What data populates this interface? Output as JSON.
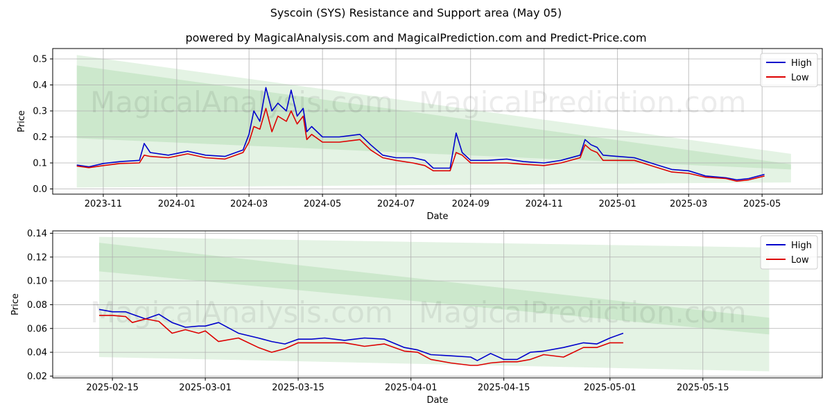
{
  "title": "Syscoin (SYS) Resistance and Support area (May 05)",
  "subtitle": "powered by MagicalAnalysis.com and MagicalPrediction.com and Predict-Price.com",
  "watermarks": [
    "MagicalAnalysis.com",
    "MagicalPrediction.com"
  ],
  "colors": {
    "high": "#0000cc",
    "low": "#dd0000",
    "band": "#2ca02c",
    "grid": "#b0b0b0"
  },
  "chart_data": [
    {
      "type": "line",
      "xlabel": "Date",
      "ylabel": "Price",
      "xlim": [
        "2023-09-20",
        "2025-06-20"
      ],
      "ylim": [
        -0.02,
        0.54
      ],
      "x_ticks": [
        "2023-11",
        "2024-01",
        "2024-03",
        "2024-05",
        "2024-07",
        "2024-09",
        "2024-11",
        "2025-01",
        "2025-03",
        "2025-05"
      ],
      "y_ticks": [
        0.0,
        0.1,
        0.2,
        0.3,
        0.4,
        0.5
      ],
      "grid": true,
      "legend_position": "top-right",
      "bands": [
        {
          "x": [
            "2023-10-10",
            "2025-05-25"
          ],
          "upper": [
            0.515,
            0.135
          ],
          "lower": [
            0.005,
            0.025
          ]
        },
        {
          "x": [
            "2023-10-10",
            "2025-05-25"
          ],
          "upper": [
            0.475,
            0.095
          ],
          "lower": [
            0.195,
            0.075
          ]
        }
      ],
      "series": [
        {
          "name": "High",
          "x": [
            "2023-10-10",
            "2023-10-20",
            "2023-11-01",
            "2023-11-15",
            "2023-12-01",
            "2023-12-05",
            "2023-12-10",
            "2023-12-25",
            "2024-01-10",
            "2024-01-25",
            "2024-02-10",
            "2024-02-25",
            "2024-03-01",
            "2024-03-05",
            "2024-03-10",
            "2024-03-15",
            "2024-03-20",
            "2024-03-25",
            "2024-04-01",
            "2024-04-05",
            "2024-04-10",
            "2024-04-15",
            "2024-04-18",
            "2024-04-22",
            "2024-05-01",
            "2024-05-15",
            "2024-06-01",
            "2024-06-10",
            "2024-06-20",
            "2024-07-01",
            "2024-07-15",
            "2024-07-25",
            "2024-08-01",
            "2024-08-15",
            "2024-08-20",
            "2024-08-25",
            "2024-09-01",
            "2024-09-15",
            "2024-10-01",
            "2024-10-15",
            "2024-11-01",
            "2024-11-15",
            "2024-12-01",
            "2024-12-05",
            "2024-12-10",
            "2024-12-15",
            "2024-12-20",
            "2025-01-01",
            "2025-01-15",
            "2025-02-01",
            "2025-02-15",
            "2025-03-01",
            "2025-03-15",
            "2025-04-01",
            "2025-04-10",
            "2025-04-20",
            "2025-05-03"
          ],
          "values": [
            0.092,
            0.085,
            0.098,
            0.105,
            0.11,
            0.175,
            0.14,
            0.13,
            0.145,
            0.13,
            0.125,
            0.15,
            0.21,
            0.3,
            0.26,
            0.39,
            0.3,
            0.33,
            0.3,
            0.38,
            0.28,
            0.31,
            0.22,
            0.24,
            0.2,
            0.2,
            0.21,
            0.17,
            0.13,
            0.12,
            0.12,
            0.11,
            0.08,
            0.08,
            0.215,
            0.14,
            0.11,
            0.11,
            0.115,
            0.105,
            0.1,
            0.11,
            0.13,
            0.19,
            0.17,
            0.16,
            0.13,
            0.125,
            0.12,
            0.095,
            0.075,
            0.07,
            0.05,
            0.043,
            0.035,
            0.04,
            0.056
          ]
        },
        {
          "name": "Low",
          "x": [
            "2023-10-10",
            "2023-10-20",
            "2023-11-01",
            "2023-11-15",
            "2023-12-01",
            "2023-12-05",
            "2023-12-10",
            "2023-12-25",
            "2024-01-10",
            "2024-01-25",
            "2024-02-10",
            "2024-02-25",
            "2024-03-01",
            "2024-03-05",
            "2024-03-10",
            "2024-03-15",
            "2024-03-20",
            "2024-03-25",
            "2024-04-01",
            "2024-04-05",
            "2024-04-10",
            "2024-04-15",
            "2024-04-18",
            "2024-04-22",
            "2024-05-01",
            "2024-05-15",
            "2024-06-01",
            "2024-06-10",
            "2024-06-20",
            "2024-07-01",
            "2024-07-15",
            "2024-07-25",
            "2024-08-01",
            "2024-08-15",
            "2024-08-20",
            "2024-08-25",
            "2024-09-01",
            "2024-09-15",
            "2024-10-01",
            "2024-10-15",
            "2024-11-01",
            "2024-11-15",
            "2024-12-01",
            "2024-12-05",
            "2024-12-10",
            "2024-12-15",
            "2024-12-20",
            "2025-01-01",
            "2025-01-15",
            "2025-02-01",
            "2025-02-15",
            "2025-03-01",
            "2025-03-15",
            "2025-04-01",
            "2025-04-10",
            "2025-04-20",
            "2025-05-03"
          ],
          "values": [
            0.088,
            0.082,
            0.09,
            0.098,
            0.1,
            0.13,
            0.125,
            0.12,
            0.135,
            0.12,
            0.115,
            0.14,
            0.18,
            0.24,
            0.23,
            0.31,
            0.22,
            0.28,
            0.26,
            0.3,
            0.25,
            0.28,
            0.19,
            0.21,
            0.18,
            0.18,
            0.19,
            0.15,
            0.12,
            0.11,
            0.1,
            0.09,
            0.07,
            0.07,
            0.14,
            0.13,
            0.1,
            0.1,
            0.1,
            0.095,
            0.09,
            0.1,
            0.12,
            0.17,
            0.15,
            0.14,
            0.11,
            0.11,
            0.11,
            0.085,
            0.065,
            0.06,
            0.045,
            0.04,
            0.03,
            0.035,
            0.05
          ]
        }
      ]
    },
    {
      "type": "line",
      "xlabel": "Date",
      "ylabel": "Price",
      "xlim": [
        "2025-02-06",
        "2025-06-02"
      ],
      "ylim": [
        0.0185,
        0.142
      ],
      "x_ticks": [
        "2025-02-15",
        "2025-03-01",
        "2025-03-15",
        "2025-04-01",
        "2025-04-15",
        "2025-05-01",
        "2025-05-15"
      ],
      "y_ticks": [
        0.02,
        0.04,
        0.06,
        0.08,
        0.1,
        0.12,
        0.14
      ],
      "grid": true,
      "legend_position": "top-right",
      "bands": [
        {
          "x": [
            "2025-02-13",
            "2025-05-25"
          ],
          "upper": [
            0.137,
            0.128
          ],
          "lower": [
            0.036,
            0.024
          ]
        },
        {
          "x": [
            "2025-02-13",
            "2025-05-25"
          ],
          "upper": [
            0.132,
            0.069
          ],
          "lower": [
            0.108,
            0.055
          ]
        }
      ],
      "series": [
        {
          "name": "High",
          "x": [
            "2025-02-13",
            "2025-02-15",
            "2025-02-17",
            "2025-02-18",
            "2025-02-20",
            "2025-02-22",
            "2025-02-24",
            "2025-02-26",
            "2025-02-28",
            "2025-03-01",
            "2025-03-03",
            "2025-03-06",
            "2025-03-09",
            "2025-03-11",
            "2025-03-13",
            "2025-03-15",
            "2025-03-17",
            "2025-03-19",
            "2025-03-22",
            "2025-03-25",
            "2025-03-28",
            "2025-03-31",
            "2025-04-02",
            "2025-04-04",
            "2025-04-07",
            "2025-04-10",
            "2025-04-11",
            "2025-04-13",
            "2025-04-15",
            "2025-04-17",
            "2025-04-19",
            "2025-04-21",
            "2025-04-24",
            "2025-04-27",
            "2025-04-29",
            "2025-05-01",
            "2025-05-03"
          ],
          "values": [
            0.076,
            0.074,
            0.074,
            0.072,
            0.068,
            0.072,
            0.065,
            0.061,
            0.062,
            0.062,
            0.065,
            0.056,
            0.052,
            0.049,
            0.047,
            0.051,
            0.051,
            0.052,
            0.05,
            0.052,
            0.051,
            0.044,
            0.042,
            0.038,
            0.037,
            0.036,
            0.033,
            0.039,
            0.034,
            0.034,
            0.04,
            0.041,
            0.044,
            0.048,
            0.047,
            0.052,
            0.056
          ]
        },
        {
          "name": "Low",
          "x": [
            "2025-02-13",
            "2025-02-15",
            "2025-02-17",
            "2025-02-18",
            "2025-02-20",
            "2025-02-22",
            "2025-02-24",
            "2025-02-26",
            "2025-02-28",
            "2025-03-01",
            "2025-03-03",
            "2025-03-06",
            "2025-03-09",
            "2025-03-11",
            "2025-03-13",
            "2025-03-15",
            "2025-03-17",
            "2025-03-19",
            "2025-03-22",
            "2025-03-25",
            "2025-03-28",
            "2025-03-31",
            "2025-04-02",
            "2025-04-04",
            "2025-04-07",
            "2025-04-10",
            "2025-04-11",
            "2025-04-13",
            "2025-04-15",
            "2025-04-17",
            "2025-04-19",
            "2025-04-21",
            "2025-04-24",
            "2025-04-27",
            "2025-04-29",
            "2025-05-01",
            "2025-05-03"
          ],
          "values": [
            0.071,
            0.071,
            0.07,
            0.065,
            0.068,
            0.066,
            0.056,
            0.059,
            0.056,
            0.058,
            0.049,
            0.052,
            0.044,
            0.04,
            0.043,
            0.048,
            0.048,
            0.048,
            0.048,
            0.045,
            0.047,
            0.041,
            0.04,
            0.034,
            0.031,
            0.029,
            0.029,
            0.031,
            0.032,
            0.032,
            0.034,
            0.038,
            0.036,
            0.044,
            0.044,
            0.048,
            0.048
          ]
        }
      ]
    }
  ]
}
